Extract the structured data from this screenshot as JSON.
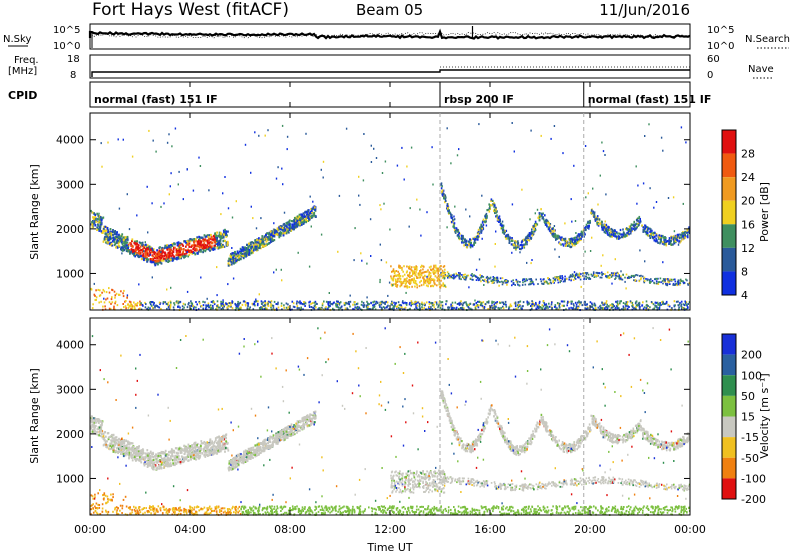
{
  "header": {
    "station": "Fort Hays West (fitACF)",
    "beam": "Beam 05",
    "date": "11/Jun/2016"
  },
  "strip_panels": {
    "noise": {
      "left_label": "N.Sky",
      "right_label": "N.Search",
      "left_ticks": [
        "10^5",
        "10^0"
      ],
      "right_ticks": [
        "10^5",
        "10^0"
      ]
    },
    "freq": {
      "left_label_1": "Freq.",
      "left_label_2": "[MHz]",
      "right_label": "Nave",
      "left_ticks": [
        "18",
        "8"
      ],
      "right_ticks": [
        "60",
        "0"
      ]
    },
    "cpid": {
      "label": "CPID",
      "modes": [
        {
          "name": "normal (fast) 151 IF",
          "start_h": 0,
          "end_h": 14
        },
        {
          "name": "rbsp 200 IF",
          "start_h": 14,
          "end_h": 19.75
        },
        {
          "name": "normal (fast) 151 IF",
          "start_h": 19.75,
          "end_h": 24
        }
      ]
    }
  },
  "chart_data": [
    {
      "type": "heatmap",
      "name": "power",
      "ylabel": "Slant Range [km]",
      "y_ticks": [
        1000,
        2000,
        3000,
        4000
      ],
      "ylim": [
        180,
        4600
      ],
      "colorbar_label": "Power [dB]",
      "colorbar_levels": [
        {
          "label": "28",
          "color": "#e01010"
        },
        {
          "label": "24",
          "color": "#f05a10"
        },
        {
          "label": "20",
          "color": "#f09a20"
        },
        {
          "label": "16",
          "color": "#f0d020"
        },
        {
          "label": "12",
          "color": "#3f8f5f"
        },
        {
          "label": "8",
          "color": "#2a5a9a"
        },
        {
          "label": "4",
          "color": "#1030e0"
        }
      ]
    },
    {
      "type": "heatmap",
      "name": "velocity",
      "ylabel": "Slant Range [km]",
      "y_ticks": [
        1000,
        2000,
        3000,
        4000
      ],
      "ylim": [
        180,
        4600
      ],
      "colorbar_label": "Velocity [m s⁻¹]",
      "colorbar_levels": [
        {
          "label": "200",
          "color": "#1830d8"
        },
        {
          "label": "100",
          "color": "#2a60a0"
        },
        {
          "label": "50",
          "color": "#2f8f4f"
        },
        {
          "label": "15",
          "color": "#7cc040"
        },
        {
          "label": "-15",
          "color": "#c8c8c0"
        },
        {
          "label": "-50",
          "color": "#f0c020"
        },
        {
          "label": "-100",
          "color": "#f08010"
        },
        {
          "label": "-200",
          "color": "#e01010"
        }
      ]
    }
  ],
  "x_axis": {
    "label": "Time UT",
    "ticks": [
      {
        "h": 0,
        "label": "00:00"
      },
      {
        "h": 4,
        "label": "04:00"
      },
      {
        "h": 8,
        "label": "08:00"
      },
      {
        "h": 12,
        "label": "12:00"
      },
      {
        "h": 16,
        "label": "16:00"
      },
      {
        "h": 20,
        "label": "20:00"
      },
      {
        "h": 24,
        "label": "00:00"
      }
    ]
  }
}
